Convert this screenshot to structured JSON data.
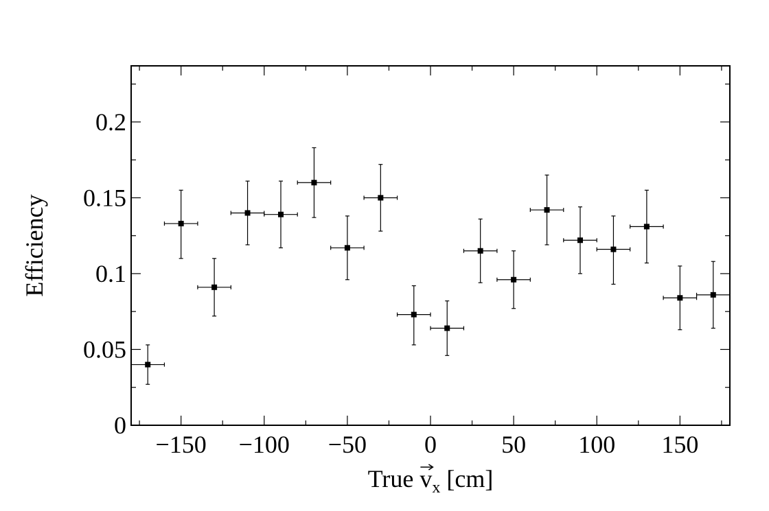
{
  "chart_data": {
    "type": "scatter",
    "title": "",
    "xlabel": "True v⃗x [cm]",
    "xlabel_parts": {
      "prefix": "True ",
      "symbol": "v",
      "subscript": "x",
      "suffix": " [cm]"
    },
    "ylabel": "Efficiency",
    "xlim": [
      -180,
      180
    ],
    "ylim": [
      0,
      0.2
    ],
    "grid": false,
    "legend": "none",
    "x_ticks": [
      {
        "value": -150,
        "label": "−150"
      },
      {
        "value": -100,
        "label": "−100"
      },
      {
        "value": -50,
        "label": "−50"
      },
      {
        "value": 0,
        "label": "0"
      },
      {
        "value": 50,
        "label": "50"
      },
      {
        "value": 100,
        "label": "100"
      },
      {
        "value": 150,
        "label": "150"
      }
    ],
    "y_ticks": [
      {
        "value": 0,
        "label": "0"
      },
      {
        "value": 0.05,
        "label": "0.05"
      },
      {
        "value": 0.1,
        "label": "0.1"
      },
      {
        "value": 0.15,
        "label": "0.15"
      },
      {
        "value": 0.2,
        "label": "0.2"
      }
    ],
    "series": [
      {
        "marker": "square",
        "color": "#000000",
        "x": [
          -170,
          -150,
          -130,
          -110,
          -90,
          -70,
          -50,
          -30,
          -10,
          10,
          30,
          50,
          70,
          90,
          110,
          130,
          150,
          170
        ],
        "x_err": [
          10,
          10,
          10,
          10,
          10,
          10,
          10,
          10,
          10,
          10,
          10,
          10,
          10,
          10,
          10,
          10,
          10,
          10
        ],
        "y": [
          0.04,
          0.133,
          0.091,
          0.14,
          0.139,
          0.16,
          0.117,
          0.15,
          0.073,
          0.064,
          0.115,
          0.096,
          0.142,
          0.122,
          0.116,
          0.131,
          0.084,
          0.086
        ],
        "y_err_low": [
          0.013,
          0.023,
          0.019,
          0.021,
          0.022,
          0.023,
          0.021,
          0.022,
          0.02,
          0.018,
          0.021,
          0.019,
          0.023,
          0.022,
          0.023,
          0.024,
          0.021,
          0.022
        ],
        "y_err_high": [
          0.013,
          0.022,
          0.019,
          0.021,
          0.022,
          0.023,
          0.021,
          0.022,
          0.019,
          0.018,
          0.021,
          0.019,
          0.023,
          0.022,
          0.022,
          0.024,
          0.021,
          0.022
        ]
      }
    ]
  }
}
